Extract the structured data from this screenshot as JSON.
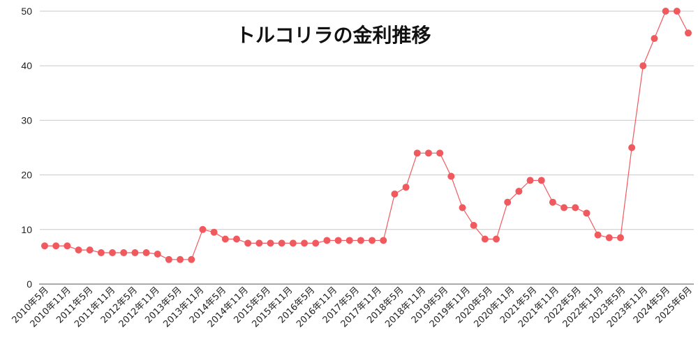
{
  "chart_data": {
    "type": "line",
    "title": "トルコリラの金利推移",
    "xlabel": "",
    "ylabel": "",
    "ylim": [
      0,
      50
    ],
    "yticks": [
      0,
      10,
      20,
      30,
      40,
      50
    ],
    "grid": true,
    "legend": "none",
    "x_tick_labels": [
      "2010年5月",
      "2010年11月",
      "2011年5月",
      "2011年11月",
      "2012年5月",
      "2012年11月",
      "2013年5月",
      "2013年11月",
      "2014年5月",
      "2014年11月",
      "2015年5月",
      "2015年11月",
      "2016年5月",
      "2016年11月",
      "2017年5月",
      "2017年11月",
      "2018年5月",
      "2018年11月",
      "2019年5月",
      "2019年11月",
      "2020年5月",
      "2020年11月",
      "2021年5月",
      "2021年11月",
      "2022年5月",
      "2022年11月",
      "2023年5月",
      "2023年11月",
      "2024年5月",
      "2025年6月"
    ],
    "series": [
      {
        "color": "#f05a5f",
        "values": [
          7,
          7,
          7,
          6.25,
          6.25,
          5.75,
          5.75,
          5.75,
          5.75,
          5.75,
          5.5,
          4.5,
          4.5,
          4.5,
          10,
          9.5,
          8.25,
          8.25,
          7.5,
          7.5,
          7.5,
          7.5,
          7.5,
          7.5,
          7.5,
          8,
          8,
          8,
          8,
          8,
          8,
          16.5,
          17.75,
          24,
          24,
          24,
          19.75,
          14,
          10.75,
          8.25,
          8.25,
          15,
          17,
          19,
          19,
          15,
          14,
          14,
          13,
          9,
          8.5,
          8.5,
          25,
          40,
          45,
          50,
          50,
          46
        ]
      }
    ]
  }
}
